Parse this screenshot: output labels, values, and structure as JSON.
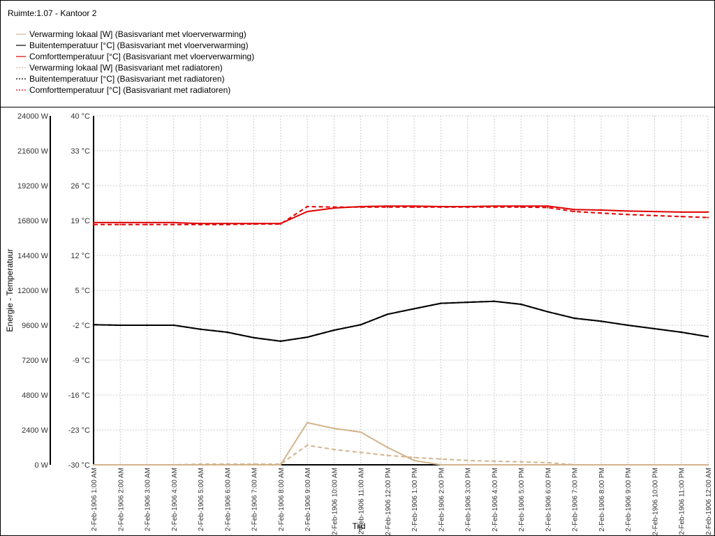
{
  "room_title": "Ruimte:1.07 - Kantoor 2",
  "colors": {
    "tan": "#d2b48c",
    "black": "#000000",
    "red": "#e00000",
    "grid": "#cccccc"
  },
  "legend": [
    {
      "label": "Verwarming lokaal [W] (Basisvariant met vloerverwarming)",
      "color": "#d2b48c",
      "dashed": false
    },
    {
      "label": "Buitentemperatuur [°C] (Basisvariant met vloerverwarming)",
      "color": "#000000",
      "dashed": false
    },
    {
      "label": "Comforttemperatuur [°C] (Basisvariant met vloerverwarming)",
      "color": "#e00000",
      "dashed": false
    },
    {
      "label": "Verwarming lokaal [W] (Basisvariant met radiatoren)",
      "color": "#d2b48c",
      "dashed": true
    },
    {
      "label": "Buitentemperatuur [°C] (Basisvariant met radiatoren)",
      "color": "#000000",
      "dashed": true
    },
    {
      "label": "Comforttemperatuur [°C] (Basisvariant met radiatoren)",
      "color": "#e00000",
      "dashed": true
    }
  ],
  "chart_data": {
    "type": "line",
    "xlabel": "Tijd",
    "ylabel": "Energie - Temperatuur",
    "grid": true,
    "categories": [
      "2-Feb-1906 1:00 AM",
      "2-Feb-1906 2:00 AM",
      "2-Feb-1906 3:00 AM",
      "2-Feb-1906 4:00 AM",
      "2-Feb-1906 5:00 AM",
      "2-Feb-1906 6:00 AM",
      "2-Feb-1906 7:00 AM",
      "2-Feb-1906 8:00 AM",
      "2-Feb-1906 9:00 AM",
      "2-Feb-1906 10:00 AM",
      "2-Feb-1906 11:00 AM",
      "2-Feb-1906 12:00 PM",
      "2-Feb-1906 1:00 PM",
      "2-Feb-1906 2:00 PM",
      "2-Feb-1906 3:00 PM",
      "2-Feb-1906 4:00 PM",
      "2-Feb-1906 5:00 PM",
      "2-Feb-1906 6:00 PM",
      "2-Feb-1906 7:00 PM",
      "2-Feb-1906 8:00 PM",
      "2-Feb-1906 9:00 PM",
      "2-Feb-1906 10:00 PM",
      "2-Feb-1906 11:00 PM",
      "2-Feb-1906 12:00 AM"
    ],
    "y_left": {
      "min": 0,
      "max": 24000,
      "ticks": [
        "0 W",
        "2400 W",
        "4800 W",
        "7200 W",
        "9600 W",
        "12000 W",
        "14400 W",
        "16800 W",
        "19200 W",
        "21600 W",
        "24000 W"
      ]
    },
    "y_right": {
      "min": -30,
      "max": 40,
      "ticks": [
        "-30 °C",
        "-23 °C",
        "-16 °C",
        "-9 °C",
        "-2 °C",
        "5 °C",
        "12 °C",
        "19 °C",
        "26 °C",
        "33 °C",
        "40 °C"
      ]
    },
    "series": [
      {
        "name": "Verwarming lokaal [W] (Basisvariant met vloerverwarming)",
        "axis": "left",
        "color": "#d2b48c",
        "dashed": false,
        "values": [
          0,
          0,
          0,
          0,
          0,
          0,
          0,
          0,
          2900,
          2500,
          2250,
          1200,
          300,
          0,
          0,
          0,
          0,
          0,
          0,
          0,
          0,
          0,
          0,
          0
        ]
      },
      {
        "name": "Buitentemperatuur [°C] (Basisvariant met vloerverwarming)",
        "axis": "right",
        "color": "#000000",
        "dashed": false,
        "values": [
          -1.9,
          -2.0,
          -2.0,
          -2.0,
          -2.8,
          -3.4,
          -4.5,
          -5.2,
          -4.4,
          -3.0,
          -1.9,
          0.2,
          1.3,
          2.4,
          2.6,
          2.8,
          2.2,
          0.7,
          -0.6,
          -1.2,
          -2.0,
          -2.7,
          -3.4,
          -4.3
        ]
      },
      {
        "name": "Comforttemperatuur [°C] (Basisvariant met vloerverwarming)",
        "axis": "right",
        "color": "#e00000",
        "dashed": false,
        "values": [
          18.6,
          18.6,
          18.6,
          18.6,
          18.4,
          18.4,
          18.4,
          18.4,
          20.8,
          21.5,
          21.8,
          21.9,
          21.9,
          21.8,
          21.8,
          21.9,
          21.9,
          21.9,
          21.2,
          21.1,
          20.9,
          20.8,
          20.7,
          20.7
        ]
      },
      {
        "name": "Verwarming lokaal [W] (Basisvariant met radiatoren)",
        "axis": "left",
        "color": "#d2b48c",
        "dashed": true,
        "values": [
          0,
          0,
          0,
          0,
          50,
          50,
          50,
          50,
          1350,
          1050,
          850,
          650,
          500,
          400,
          300,
          250,
          200,
          150,
          0,
          0,
          0,
          0,
          0,
          0
        ]
      },
      {
        "name": "Buitentemperatuur [°C] (Basisvariant met radiatoren)",
        "axis": "right",
        "color": "#000000",
        "dashed": true,
        "values": [
          -1.9,
          -2.0,
          -2.0,
          -2.0,
          -2.8,
          -3.4,
          -4.5,
          -5.2,
          -4.4,
          -3.0,
          -1.9,
          0.2,
          1.3,
          2.4,
          2.6,
          2.8,
          2.2,
          0.7,
          -0.6,
          -1.2,
          -2.0,
          -2.7,
          -3.4,
          -4.3
        ]
      },
      {
        "name": "Comforttemperatuur [°C] (Basisvariant met radiatoren)",
        "axis": "right",
        "color": "#e00000",
        "dashed": true,
        "values": [
          18.2,
          18.2,
          18.2,
          18.2,
          18.2,
          18.2,
          18.3,
          18.3,
          21.8,
          21.7,
          21.7,
          21.7,
          21.7,
          21.7,
          21.7,
          21.7,
          21.7,
          21.6,
          20.8,
          20.5,
          20.2,
          20.0,
          19.8,
          19.6
        ]
      }
    ]
  }
}
